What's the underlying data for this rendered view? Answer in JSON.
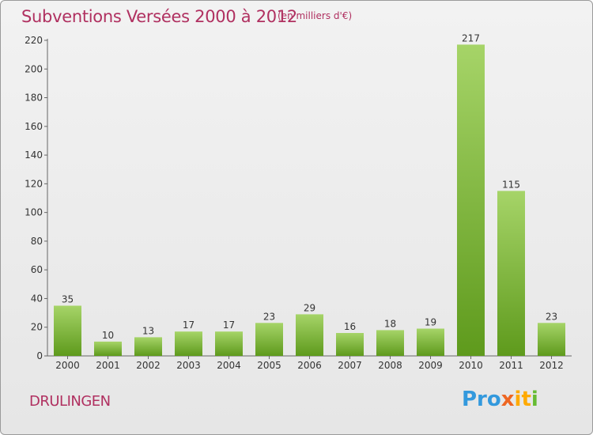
{
  "header": {
    "title": "Subventions Versées 2000 à 2012",
    "subtitle": "(en milliers d'€)"
  },
  "footer": {
    "commune": "DRULINGEN",
    "logo": {
      "parts": [
        "Pro",
        "x",
        "it",
        "i"
      ],
      "colors": [
        "#3399dd",
        "#ee6622",
        "#ffaa00",
        "#66bb33"
      ]
    }
  },
  "colors": {
    "bar_light": "#a6d468",
    "bar_dark": "#5e9a1c",
    "axis": "#666666",
    "title": "#b03060"
  },
  "chart_data": {
    "type": "bar",
    "title": "Subventions Versées 2000 à 2012",
    "subtitle": "(en milliers d'€)",
    "categories": [
      "2000",
      "2001",
      "2002",
      "2003",
      "2004",
      "2005",
      "2006",
      "2007",
      "2008",
      "2009",
      "2010",
      "2011",
      "2012"
    ],
    "values": [
      35,
      10,
      13,
      17,
      17,
      23,
      29,
      16,
      18,
      19,
      217,
      115,
      23
    ],
    "ylim": [
      0,
      220
    ],
    "yticks": [
      0,
      20,
      40,
      60,
      80,
      100,
      120,
      140,
      160,
      180,
      200,
      220
    ],
    "grid": false,
    "data_labels": true
  }
}
